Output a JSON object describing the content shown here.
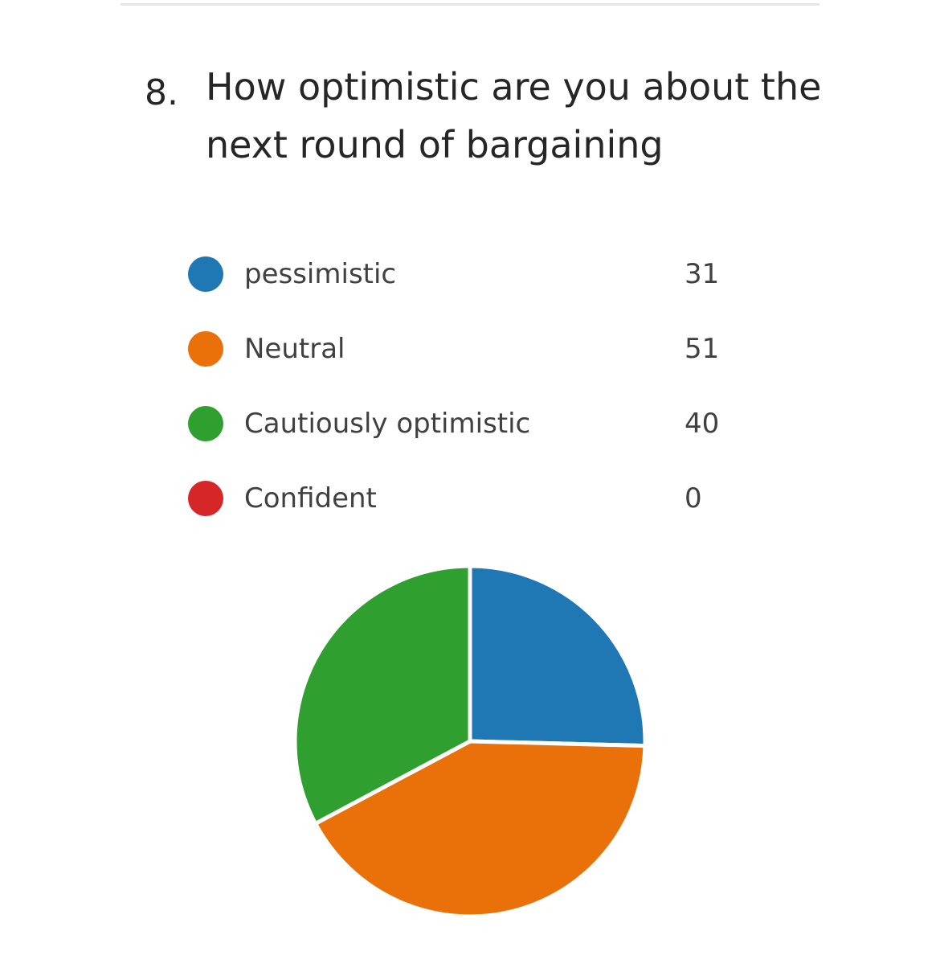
{
  "question": {
    "number": "8.",
    "text": "How optimistic are you about the next round of bargaining"
  },
  "chart_data": {
    "type": "pie",
    "categories": [
      "pessimistic",
      "Neutral",
      "Cautiously optimistic",
      "Confident"
    ],
    "values": [
      31,
      51,
      40,
      0
    ],
    "colors": [
      "#1f77b4",
      "#ea700a",
      "#2fa02f",
      "#d62728"
    ],
    "legend_position": "top"
  },
  "legend": {
    "items": [
      {
        "label": "pessimistic",
        "value": "31",
        "color": "#1f77b4"
      },
      {
        "label": "Neutral",
        "value": "51",
        "color": "#ea700a"
      },
      {
        "label": "Cautiously optimistic",
        "value": "40",
        "color": "#2fa02f"
      },
      {
        "label": "Confident",
        "value": "0",
        "color": "#d62728"
      }
    ]
  }
}
